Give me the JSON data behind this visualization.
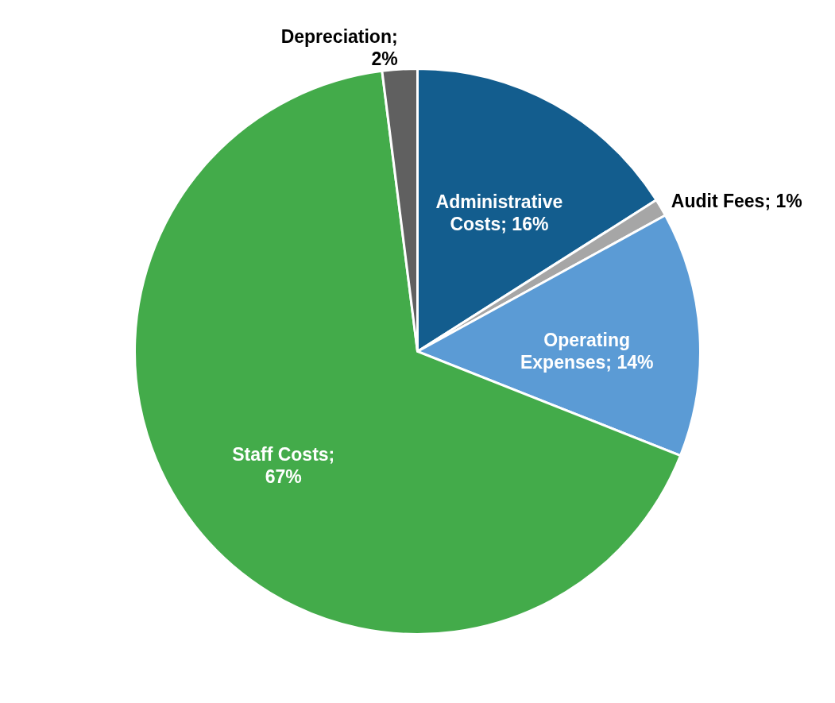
{
  "chart_data": {
    "type": "pie",
    "categories": [
      "Administrative Costs",
      "Audit Fees",
      "Operating Expenses",
      "Staff Costs",
      "Depreciation"
    ],
    "values": [
      16,
      1,
      14,
      67,
      2
    ],
    "colors": [
      "#135d8e",
      "#a6a6a6",
      "#5b9bd5",
      "#43ab4a",
      "#606060"
    ],
    "value_labels": [
      "; 16%",
      "; 1%",
      "; 14%",
      "; 67%",
      "; 2%"
    ]
  }
}
